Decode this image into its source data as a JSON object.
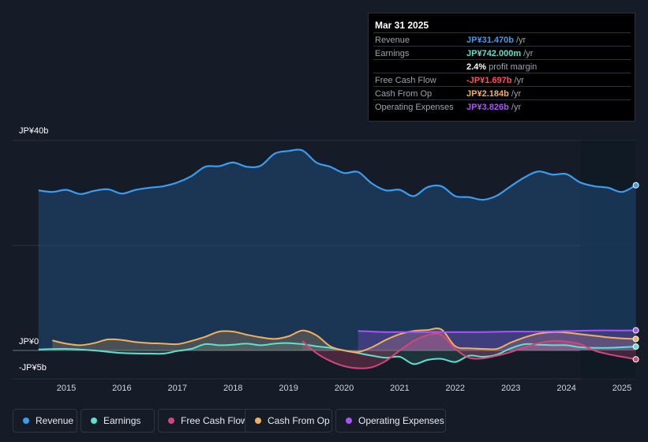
{
  "tooltip": {
    "date": "Mar 31 2025",
    "rows": [
      {
        "label": "Revenue",
        "value": "JP¥31.470b",
        "unit": " /yr",
        "color": "#3b9cf0"
      },
      {
        "label": "Earnings",
        "value": "JP¥742.000m",
        "unit": " /yr",
        "color": "#5fe0cf"
      },
      {
        "label": "",
        "value": "2.4%",
        "unit": " profit margin",
        "color": "#ffffff"
      },
      {
        "label": "Free Cash Flow",
        "value": "-JP¥1.697b",
        "unit": " /yr",
        "color": "#ff4d5e"
      },
      {
        "label": "Cash From Op",
        "value": "JP¥2.184b",
        "unit": " /yr",
        "color": "#f0b060"
      },
      {
        "label": "Operating Expenses",
        "value": "JP¥3.826b",
        "unit": " /yr",
        "color": "#a855f7"
      }
    ]
  },
  "legend": [
    {
      "label": "Revenue",
      "color": "#3b9cf0"
    },
    {
      "label": "Earnings",
      "color": "#5fe0cf"
    },
    {
      "label": "Free Cash Flow",
      "color": "#d1477a"
    },
    {
      "label": "Cash From Op",
      "color": "#f0b060"
    },
    {
      "label": "Operating Expenses",
      "color": "#a855f7"
    }
  ],
  "chart_data": {
    "type": "area",
    "unit": "JP¥ billions",
    "y_axis_labels": [
      "JP¥40b",
      "JP¥0",
      "-JP¥5b"
    ],
    "ylim": [
      -5,
      40
    ],
    "xlim": [
      2014.5,
      2025.25
    ],
    "x_ticks": [
      2015,
      2016,
      2017,
      2018,
      2019,
      2020,
      2021,
      2022,
      2023,
      2024,
      2025
    ],
    "x_tick_labels": [
      "2015",
      "2016",
      "2017",
      "2018",
      "2019",
      "2020",
      "2021",
      "2022",
      "2023",
      "2024",
      "2025"
    ],
    "forecast_start": 2024.25,
    "series": [
      {
        "name": "Revenue",
        "color": "#3b9cf0",
        "fill": true,
        "points": [
          [
            2014.5,
            30.5
          ],
          [
            2014.75,
            30.2
          ],
          [
            2015.0,
            30.6
          ],
          [
            2015.25,
            29.8
          ],
          [
            2015.5,
            30.4
          ],
          [
            2015.75,
            30.7
          ],
          [
            2016.0,
            29.9
          ],
          [
            2016.25,
            30.6
          ],
          [
            2016.5,
            31.0
          ],
          [
            2016.75,
            31.3
          ],
          [
            2017.0,
            32.0
          ],
          [
            2017.25,
            33.2
          ],
          [
            2017.5,
            35.0
          ],
          [
            2017.75,
            35.1
          ],
          [
            2018.0,
            35.8
          ],
          [
            2018.25,
            35.0
          ],
          [
            2018.5,
            35.2
          ],
          [
            2018.75,
            37.5
          ],
          [
            2019.0,
            38.0
          ],
          [
            2019.25,
            38.1
          ],
          [
            2019.5,
            35.8
          ],
          [
            2019.75,
            35.0
          ],
          [
            2020.0,
            33.8
          ],
          [
            2020.25,
            34.0
          ],
          [
            2020.5,
            31.8
          ],
          [
            2020.75,
            30.5
          ],
          [
            2021.0,
            30.6
          ],
          [
            2021.25,
            29.4
          ],
          [
            2021.5,
            31.1
          ],
          [
            2021.75,
            31.3
          ],
          [
            2022.0,
            29.4
          ],
          [
            2022.25,
            29.2
          ],
          [
            2022.5,
            28.7
          ],
          [
            2022.75,
            29.5
          ],
          [
            2023.0,
            31.3
          ],
          [
            2023.25,
            33.0
          ],
          [
            2023.5,
            34.1
          ],
          [
            2023.75,
            33.5
          ],
          [
            2024.0,
            33.6
          ],
          [
            2024.25,
            32.0
          ],
          [
            2024.5,
            31.3
          ],
          [
            2024.75,
            31.0
          ],
          [
            2025.0,
            30.2
          ],
          [
            2025.25,
            31.47
          ]
        ]
      },
      {
        "name": "Earnings",
        "color": "#5fe0cf",
        "fill": true,
        "points": [
          [
            2014.5,
            0.2
          ],
          [
            2015.0,
            0.3
          ],
          [
            2015.5,
            0.0
          ],
          [
            2016.0,
            -0.5
          ],
          [
            2016.5,
            -0.6
          ],
          [
            2016.75,
            -0.6
          ],
          [
            2017.0,
            -0.1
          ],
          [
            2017.25,
            0.3
          ],
          [
            2017.5,
            1.2
          ],
          [
            2017.75,
            1.0
          ],
          [
            2018.0,
            1.1
          ],
          [
            2018.25,
            1.3
          ],
          [
            2018.5,
            1.0
          ],
          [
            2018.75,
            1.3
          ],
          [
            2019.0,
            1.4
          ],
          [
            2019.25,
            1.2
          ],
          [
            2019.5,
            0.8
          ],
          [
            2019.75,
            0.5
          ],
          [
            2020.0,
            0.0
          ],
          [
            2020.25,
            -0.5
          ],
          [
            2020.5,
            -1.0
          ],
          [
            2020.75,
            -1.4
          ],
          [
            2021.0,
            -1.2
          ],
          [
            2021.25,
            -2.6
          ],
          [
            2021.5,
            -1.8
          ],
          [
            2021.75,
            -1.6
          ],
          [
            2022.0,
            -2.2
          ],
          [
            2022.25,
            -1.0
          ],
          [
            2022.5,
            -1.2
          ],
          [
            2022.75,
            -0.8
          ],
          [
            2023.0,
            0.4
          ],
          [
            2023.25,
            1.2
          ],
          [
            2023.5,
            1.1
          ],
          [
            2023.75,
            1.0
          ],
          [
            2024.0,
            1.0
          ],
          [
            2024.25,
            0.6
          ],
          [
            2024.5,
            0.5
          ],
          [
            2024.75,
            0.5
          ],
          [
            2025.0,
            0.6
          ],
          [
            2025.25,
            0.742
          ]
        ]
      },
      {
        "name": "Free Cash Flow",
        "color": "#d1477a",
        "fill": true,
        "points": [
          [
            2019.25,
            1.8
          ],
          [
            2019.5,
            -0.5
          ],
          [
            2019.75,
            -2.0
          ],
          [
            2020.0,
            -3.0
          ],
          [
            2020.25,
            -3.4
          ],
          [
            2020.5,
            -3.2
          ],
          [
            2020.75,
            -2.0
          ],
          [
            2021.0,
            0.0
          ],
          [
            2021.25,
            1.8
          ],
          [
            2021.5,
            2.9
          ],
          [
            2021.75,
            3.0
          ],
          [
            2022.0,
            0.3
          ],
          [
            2022.25,
            -1.4
          ],
          [
            2022.5,
            -1.5
          ],
          [
            2022.75,
            -1.0
          ],
          [
            2023.0,
            -0.3
          ],
          [
            2023.25,
            0.6
          ],
          [
            2023.5,
            1.4
          ],
          [
            2023.75,
            1.8
          ],
          [
            2024.0,
            1.7
          ],
          [
            2024.25,
            1.2
          ],
          [
            2024.5,
            0.0
          ],
          [
            2024.75,
            -0.7
          ],
          [
            2025.0,
            -1.2
          ],
          [
            2025.25,
            -1.697
          ]
        ]
      },
      {
        "name": "Cash From Op",
        "color": "#f0b060",
        "fill": true,
        "points": [
          [
            2014.75,
            1.9
          ],
          [
            2015.0,
            1.3
          ],
          [
            2015.25,
            1.0
          ],
          [
            2015.5,
            1.4
          ],
          [
            2015.75,
            2.1
          ],
          [
            2016.0,
            2.0
          ],
          [
            2016.25,
            1.6
          ],
          [
            2016.5,
            1.4
          ],
          [
            2016.75,
            1.3
          ],
          [
            2017.0,
            1.2
          ],
          [
            2017.25,
            1.8
          ],
          [
            2017.5,
            2.6
          ],
          [
            2017.75,
            3.6
          ],
          [
            2018.0,
            3.6
          ],
          [
            2018.25,
            3.0
          ],
          [
            2018.5,
            2.5
          ],
          [
            2018.75,
            2.2
          ],
          [
            2019.0,
            2.7
          ],
          [
            2019.25,
            3.8
          ],
          [
            2019.5,
            2.9
          ],
          [
            2019.75,
            0.8
          ],
          [
            2020.0,
            0.0
          ],
          [
            2020.25,
            -0.3
          ],
          [
            2020.5,
            0.6
          ],
          [
            2020.75,
            2.0
          ],
          [
            2021.0,
            3.1
          ],
          [
            2021.25,
            3.7
          ],
          [
            2021.5,
            3.9
          ],
          [
            2021.75,
            4.0
          ],
          [
            2022.0,
            0.8
          ],
          [
            2022.25,
            0.4
          ],
          [
            2022.5,
            0.3
          ],
          [
            2022.75,
            0.3
          ],
          [
            2023.0,
            1.5
          ],
          [
            2023.25,
            2.5
          ],
          [
            2023.5,
            3.2
          ],
          [
            2023.75,
            3.5
          ],
          [
            2024.0,
            3.4
          ],
          [
            2024.25,
            3.1
          ],
          [
            2024.5,
            2.8
          ],
          [
            2024.75,
            2.5
          ],
          [
            2025.0,
            2.3
          ],
          [
            2025.25,
            2.184
          ]
        ]
      },
      {
        "name": "Operating Expenses",
        "color": "#a855f7",
        "fill": true,
        "points": [
          [
            2020.25,
            3.7
          ],
          [
            2020.5,
            3.6
          ],
          [
            2020.75,
            3.5
          ],
          [
            2021.0,
            3.5
          ],
          [
            2021.5,
            3.5
          ],
          [
            2022.0,
            3.5
          ],
          [
            2022.5,
            3.5
          ],
          [
            2023.0,
            3.6
          ],
          [
            2023.5,
            3.6
          ],
          [
            2024.0,
            3.7
          ],
          [
            2024.5,
            3.8
          ],
          [
            2025.0,
            3.8
          ],
          [
            2025.25,
            3.826
          ]
        ]
      }
    ]
  }
}
